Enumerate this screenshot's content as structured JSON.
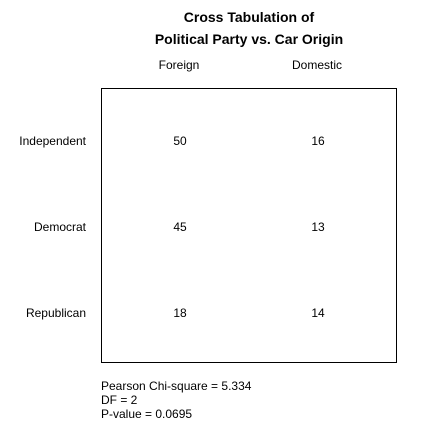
{
  "chart_data": {
    "type": "table",
    "title_line1": "Cross Tabulation of",
    "title_line2": "Political Party  vs.  Car Origin",
    "columns": [
      "Foreign",
      "Domestic"
    ],
    "rows": [
      "Independent",
      "Democrat",
      "Republican"
    ],
    "values": [
      [
        50,
        16
      ],
      [
        45,
        13
      ],
      [
        18,
        14
      ]
    ],
    "stats": {
      "chi_square": "Pearson Chi-square = 5.334",
      "df": "DF = 2",
      "p_value": "P-value = 0.0695"
    }
  }
}
